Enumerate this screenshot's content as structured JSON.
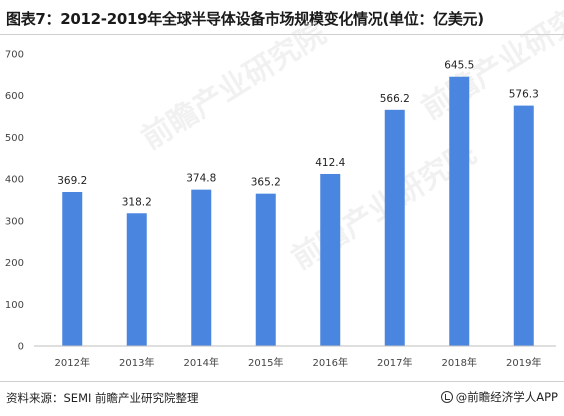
{
  "title": "图表7：2012-2019年全球半导体设备市场规模变化情况(单位：亿美元)",
  "chart_data": {
    "type": "bar",
    "title": "图表7：2012-2019年全球半导体设备市场规模变化情况(单位：亿美元)",
    "categories": [
      "2012年",
      "2013年",
      "2014年",
      "2015年",
      "2016年",
      "2017年",
      "2018年",
      "2019年"
    ],
    "values": [
      369.2,
      318.2,
      374.8,
      365.2,
      412.4,
      566.2,
      645.5,
      576.3
    ],
    "value_labels": [
      "369.2",
      "318.2",
      "374.8",
      "365.2",
      "412.4",
      "566.2",
      "645.5",
      "576.3"
    ],
    "ylim": [
      0,
      700
    ],
    "yticks": [
      "0",
      "100",
      "200",
      "300",
      "400",
      "500",
      "600",
      "700"
    ],
    "xlabel": "",
    "ylabel": "",
    "grid": false,
    "legend": "none",
    "bar_color": "#4a86e0"
  },
  "watermark": {
    "text": "前瞻产业研究院"
  },
  "footer": {
    "source": "资料来源：SEMI 前瞻产业研究院整理",
    "brand": "@前瞻经济学人APP",
    "brand_icon": "brand-logo-icon"
  }
}
